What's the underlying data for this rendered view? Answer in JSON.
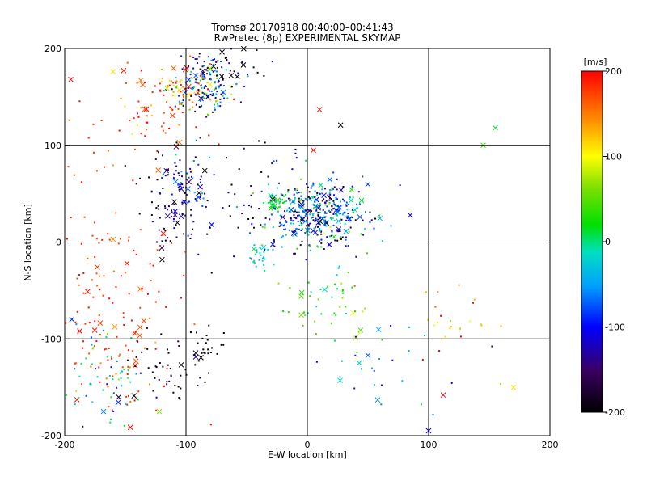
{
  "chart_data": [
    {
      "type": "scatter",
      "title_lines": [
        "Tromsø 20170918 00:40:00–00:41:43",
        "RwPretec (8p) EXPERIMENTAL SKYMAP"
      ],
      "xlabel": "E-W location [km]",
      "ylabel": "N-S location [km]",
      "xlim": [
        -200,
        200
      ],
      "ylim": [
        -200,
        200
      ],
      "xticks": [
        "-200",
        "-100",
        "0",
        "100",
        "200"
      ],
      "yticks": [
        "-200",
        "-100",
        "0",
        "100",
        "200"
      ],
      "grid_x": [
        -100,
        0,
        100
      ],
      "grid_y": [
        -100,
        0,
        100
      ],
      "marker_legend": "small dots and x markers, colored by velocity",
      "clusters": [
        {
          "cx": 8,
          "cy": 30,
          "sx": 22,
          "sy": 18,
          "n": 420,
          "vmean": -80,
          "vspread": 70
        },
        {
          "cx": -25,
          "cy": 40,
          "sx": 5,
          "sy": 4,
          "n": 40,
          "vmean": 10,
          "vspread": 15
        },
        {
          "cx": -40,
          "cy": -15,
          "sx": 4,
          "sy": 8,
          "n": 25,
          "vmean": -20,
          "vspread": 15
        },
        {
          "cx": -85,
          "cy": 160,
          "sx": 12,
          "sy": 12,
          "n": 140,
          "vmean": -60,
          "vspread": 90
        },
        {
          "cx": -65,
          "cy": 185,
          "sx": 18,
          "sy": 12,
          "n": 60,
          "vmean": -150,
          "vspread": 60
        },
        {
          "cx": -105,
          "cy": 160,
          "sx": 10,
          "sy": 10,
          "n": 45,
          "vmean": 150,
          "vspread": 40
        },
        {
          "cx": -110,
          "cy": 40,
          "sx": 12,
          "sy": 25,
          "n": 90,
          "vmean": -160,
          "vspread": 50
        },
        {
          "cx": -95,
          "cy": 55,
          "sx": 10,
          "sy": 20,
          "n": 40,
          "vmean": -90,
          "vspread": 40
        },
        {
          "cx": -160,
          "cy": -80,
          "sx": 28,
          "sy": 60,
          "n": 170,
          "vmean": 185,
          "vspread": 20
        },
        {
          "cx": -170,
          "cy": -140,
          "sx": 18,
          "sy": 25,
          "n": 60,
          "vmean": -20,
          "vspread": 60
        },
        {
          "cx": -115,
          "cy": -130,
          "sx": 15,
          "sy": 15,
          "n": 45,
          "vmean": -190,
          "vspread": 25
        },
        {
          "cx": -85,
          "cy": -110,
          "sx": 8,
          "sy": 12,
          "n": 25,
          "vmean": -195,
          "vspread": 10
        },
        {
          "cx": -130,
          "cy": 130,
          "sx": 25,
          "sy": 30,
          "n": 70,
          "vmean": 175,
          "vspread": 30
        },
        {
          "cx": 20,
          "cy": -60,
          "sx": 20,
          "sy": 25,
          "n": 55,
          "vmean": 30,
          "vspread": 40
        },
        {
          "cx": -60,
          "cy": 70,
          "sx": 30,
          "sy": 40,
          "n": 40,
          "vmean": -180,
          "vspread": 40
        },
        {
          "cx": 120,
          "cy": -90,
          "sx": 20,
          "sy": 20,
          "n": 25,
          "vmean": 160,
          "vspread": 60
        },
        {
          "cx": 60,
          "cy": -130,
          "sx": 40,
          "sy": 30,
          "n": 25,
          "vmean": -80,
          "vspread": 50
        }
      ],
      "highlight_points": [
        {
          "x": 145,
          "y": 100,
          "v": 40
        },
        {
          "x": 155,
          "y": 118,
          "v": 15
        },
        {
          "x": 170,
          "y": -150,
          "v": 110
        },
        {
          "x": 112,
          "y": -158,
          "v": 200
        },
        {
          "x": 100,
          "y": -195,
          "v": -110
        },
        {
          "x": 50,
          "y": -117,
          "v": -70
        },
        {
          "x": 58,
          "y": -163,
          "v": -55
        },
        {
          "x": 27,
          "y": -143,
          "v": -10
        },
        {
          "x": 10,
          "y": 137,
          "v": 195
        },
        {
          "x": 5,
          "y": 95,
          "v": 195
        },
        {
          "x": -195,
          "y": 168,
          "v": 200
        },
        {
          "x": -168,
          "y": -175,
          "v": -60
        },
        {
          "x": -122,
          "y": -175,
          "v": 60
        }
      ],
      "colorbar": {
        "label": "[m/s]",
        "range": [
          -200,
          200
        ],
        "ticks": [
          "200",
          "100",
          "0",
          "-100",
          "-200"
        ]
      }
    }
  ]
}
